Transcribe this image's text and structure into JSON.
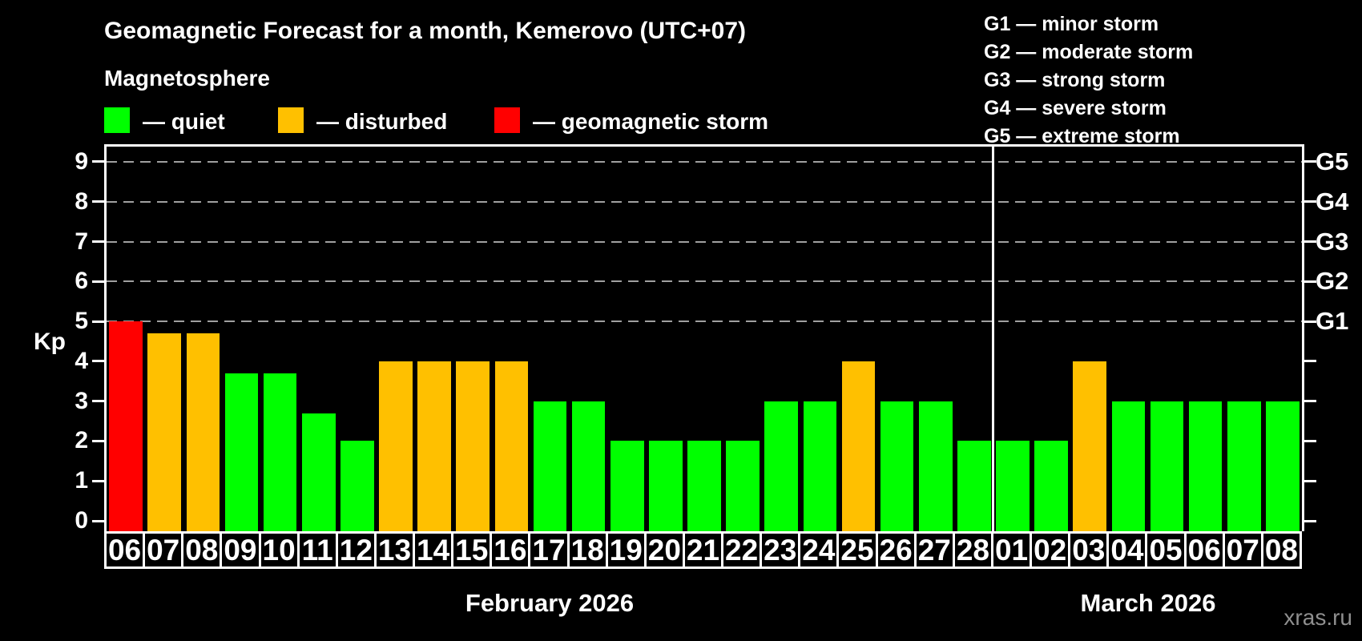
{
  "title": "Geomagnetic Forecast for a month, Kemerovo (UTC+07)",
  "subtitle": "Magnetosphere",
  "watermark": "xras.ru",
  "colors": {
    "quiet": "#00ff00",
    "disturbed": "#ffc000",
    "storm": "#ff0000",
    "background": "#000000",
    "text": "#ffffff",
    "grid": "#a0a0a0",
    "watermark": "#8f8f8f"
  },
  "legend": [
    {
      "status": "quiet",
      "label": "— quiet"
    },
    {
      "status": "disturbed",
      "label": "— disturbed"
    },
    {
      "status": "storm",
      "label": "— geomagnetic storm"
    }
  ],
  "g_scale_legend": [
    "G1 — minor storm",
    "G2 — moderate storm",
    "G3 — strong storm",
    "G4 — severe storm",
    "G5 — extreme storm"
  ],
  "chart_data": {
    "type": "bar",
    "ylabel": "Kp",
    "ylim": [
      0,
      9
    ],
    "yticks": [
      0,
      1,
      2,
      3,
      4,
      5,
      6,
      7,
      8,
      9
    ],
    "gridlines_at_kp": [
      5,
      6,
      7,
      8,
      9
    ],
    "grid": "dashed",
    "legend_position": "top",
    "right_axis_labels": [
      {
        "kp": 5,
        "label": "G1"
      },
      {
        "kp": 6,
        "label": "G2"
      },
      {
        "kp": 7,
        "label": "G3"
      },
      {
        "kp": 8,
        "label": "G4"
      },
      {
        "kp": 9,
        "label": "G5"
      }
    ],
    "months": [
      {
        "label": "February 2026",
        "bars": [
          {
            "day": "06",
            "kp": 5.0,
            "status": "storm"
          },
          {
            "day": "07",
            "kp": 4.7,
            "status": "disturbed"
          },
          {
            "day": "08",
            "kp": 4.7,
            "status": "disturbed"
          },
          {
            "day": "09",
            "kp": 3.7,
            "status": "quiet"
          },
          {
            "day": "10",
            "kp": 3.7,
            "status": "quiet"
          },
          {
            "day": "11",
            "kp": 2.7,
            "status": "quiet"
          },
          {
            "day": "12",
            "kp": 2.0,
            "status": "quiet"
          },
          {
            "day": "13",
            "kp": 4.0,
            "status": "disturbed"
          },
          {
            "day": "14",
            "kp": 4.0,
            "status": "disturbed"
          },
          {
            "day": "15",
            "kp": 4.0,
            "status": "disturbed"
          },
          {
            "day": "16",
            "kp": 4.0,
            "status": "disturbed"
          },
          {
            "day": "17",
            "kp": 3.0,
            "status": "quiet"
          },
          {
            "day": "18",
            "kp": 3.0,
            "status": "quiet"
          },
          {
            "day": "19",
            "kp": 2.0,
            "status": "quiet"
          },
          {
            "day": "20",
            "kp": 2.0,
            "status": "quiet"
          },
          {
            "day": "21",
            "kp": 2.0,
            "status": "quiet"
          },
          {
            "day": "22",
            "kp": 2.0,
            "status": "quiet"
          },
          {
            "day": "23",
            "kp": 3.0,
            "status": "quiet"
          },
          {
            "day": "24",
            "kp": 3.0,
            "status": "quiet"
          },
          {
            "day": "25",
            "kp": 4.0,
            "status": "disturbed"
          },
          {
            "day": "26",
            "kp": 3.0,
            "status": "quiet"
          },
          {
            "day": "27",
            "kp": 3.0,
            "status": "quiet"
          },
          {
            "day": "28",
            "kp": 2.0,
            "status": "quiet"
          }
        ]
      },
      {
        "label": "March 2026",
        "bars": [
          {
            "day": "01",
            "kp": 2.0,
            "status": "quiet"
          },
          {
            "day": "02",
            "kp": 2.0,
            "status": "quiet"
          },
          {
            "day": "03",
            "kp": 4.0,
            "status": "disturbed"
          },
          {
            "day": "04",
            "kp": 3.0,
            "status": "quiet"
          },
          {
            "day": "05",
            "kp": 3.0,
            "status": "quiet"
          },
          {
            "day": "06",
            "kp": 3.0,
            "status": "quiet"
          },
          {
            "day": "07",
            "kp": 3.0,
            "status": "quiet"
          },
          {
            "day": "08",
            "kp": 3.0,
            "status": "quiet"
          }
        ]
      }
    ]
  }
}
